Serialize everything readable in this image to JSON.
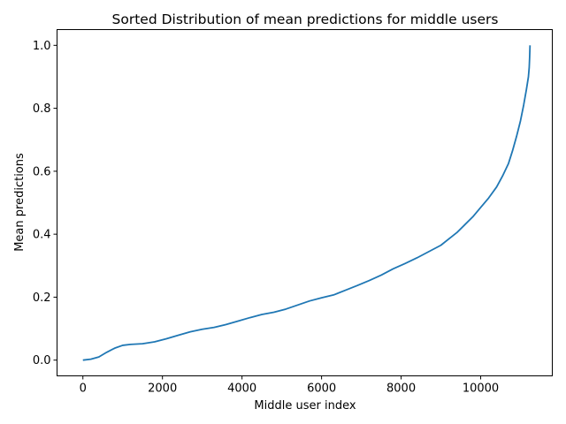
{
  "chart_data": {
    "type": "line",
    "title": "Sorted Distribution of mean predictions for middle users",
    "xlabel": "Middle user index",
    "ylabel": "Mean predictions",
    "xlim": [
      -650,
      11800
    ],
    "ylim": [
      -0.05,
      1.05
    ],
    "xticks": [
      0,
      2000,
      4000,
      6000,
      8000,
      10000
    ],
    "xtick_labels": [
      "0",
      "2000",
      "4000",
      "6000",
      "8000",
      "10000"
    ],
    "yticks": [
      0.0,
      0.2,
      0.4,
      0.6,
      0.8,
      1.0
    ],
    "ytick_labels": [
      "0.0",
      "0.2",
      "0.4",
      "0.6",
      "0.8",
      "1.0"
    ],
    "grid": false,
    "legend": "none",
    "color": "#1f77b4",
    "series": [
      {
        "x": [
          0,
          200,
          400,
          600,
          800,
          1000,
          1200,
          1500,
          1800,
          2100,
          2400,
          2700,
          3000,
          3300,
          3600,
          3900,
          4200,
          4500,
          4800,
          5100,
          5400,
          5700,
          6000,
          6300,
          6600,
          6900,
          7200,
          7500,
          7800,
          8100,
          8400,
          8700,
          9000,
          9200,
          9400,
          9600,
          9800,
          10000,
          10200,
          10400,
          10550,
          10700,
          10800,
          10900,
          11000,
          11080,
          11150,
          11200,
          11220,
          11230,
          11240
        ],
        "y": [
          0.0,
          0.003,
          0.01,
          0.025,
          0.038,
          0.047,
          0.05,
          0.052,
          0.058,
          0.068,
          0.079,
          0.09,
          0.098,
          0.104,
          0.113,
          0.124,
          0.135,
          0.145,
          0.152,
          0.162,
          0.175,
          0.188,
          0.198,
          0.207,
          0.222,
          0.237,
          0.253,
          0.27,
          0.29,
          0.307,
          0.325,
          0.345,
          0.365,
          0.385,
          0.405,
          0.43,
          0.455,
          0.485,
          0.515,
          0.55,
          0.585,
          0.625,
          0.665,
          0.71,
          0.76,
          0.81,
          0.86,
          0.9,
          0.93,
          0.96,
          1.0
        ]
      }
    ]
  }
}
